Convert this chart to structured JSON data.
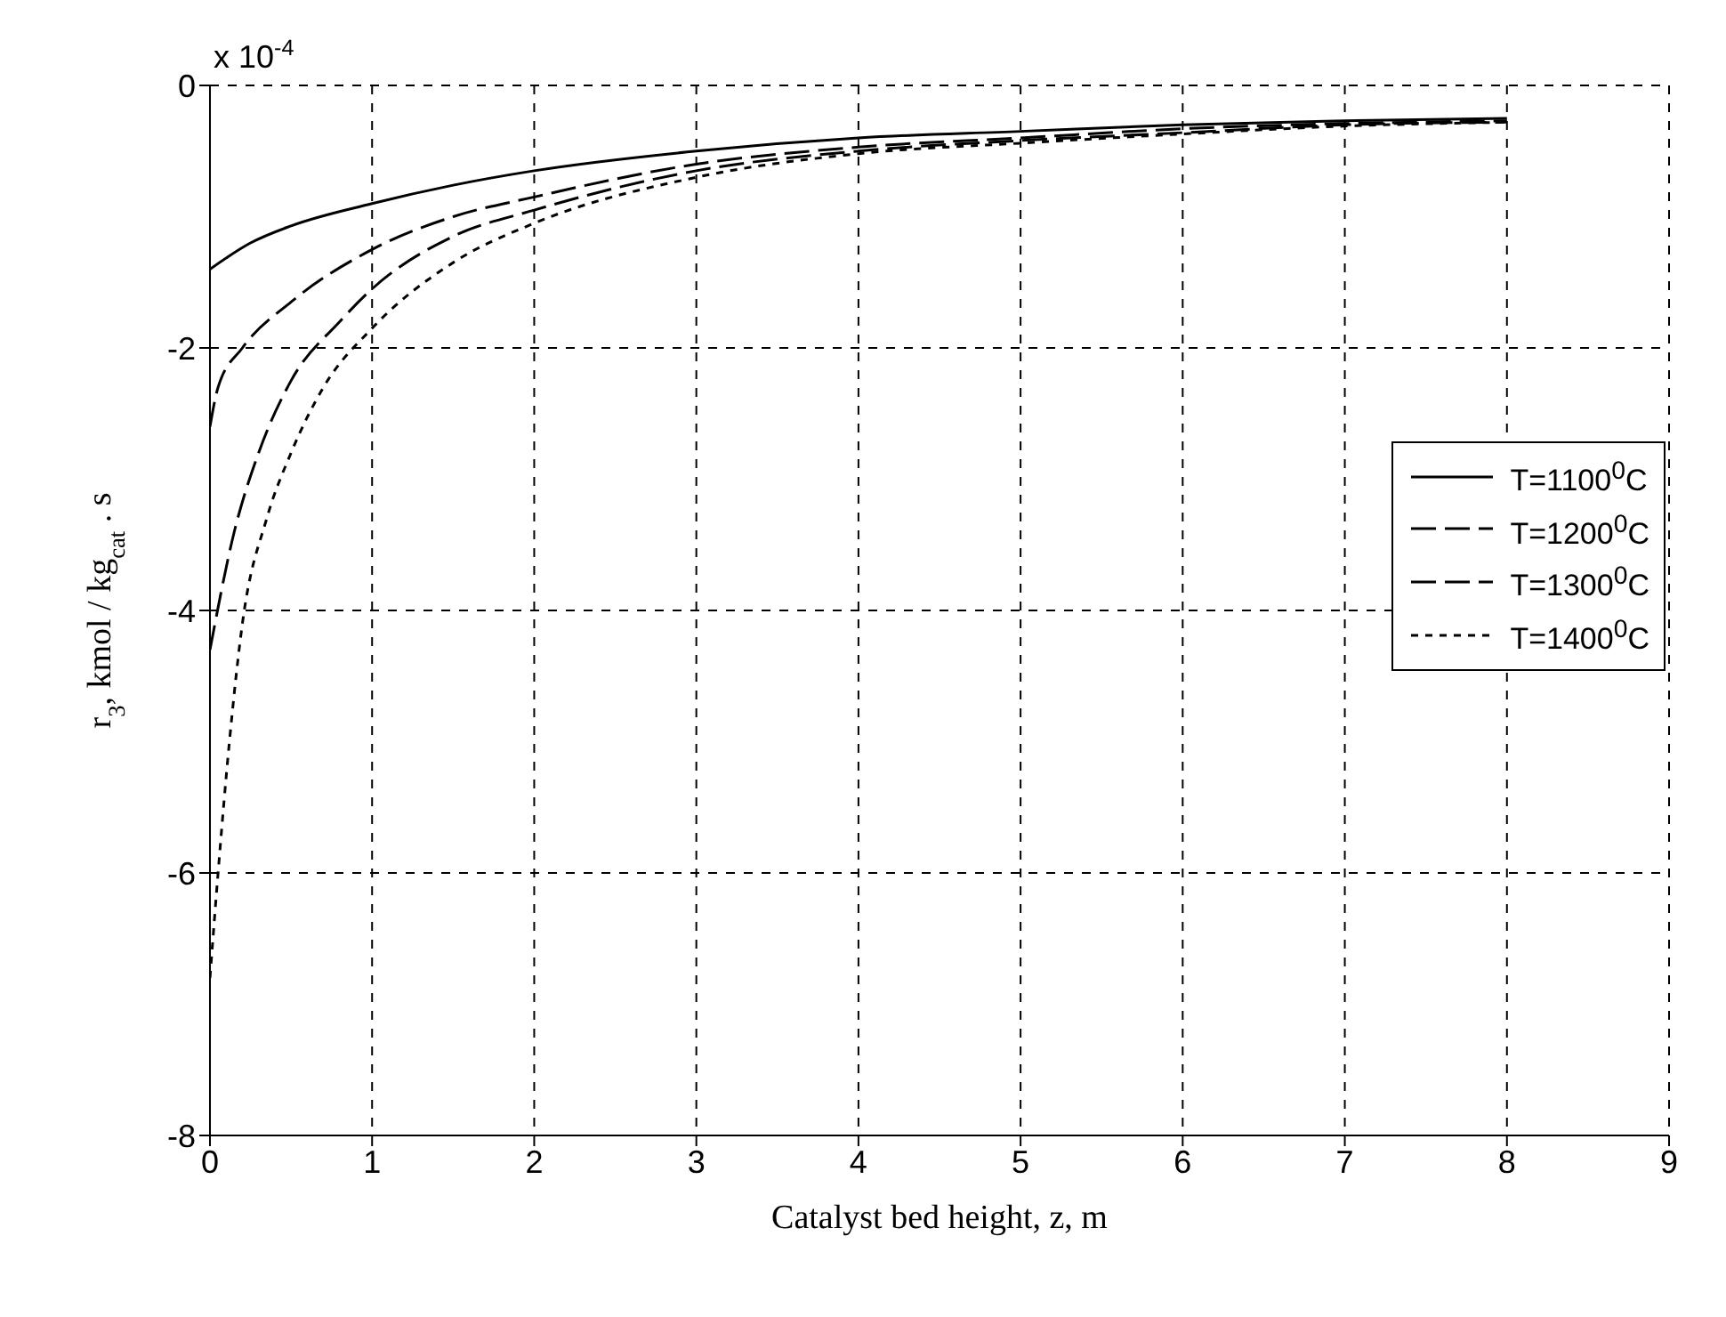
{
  "chart_data": {
    "type": "line",
    "xlabel": "Catalyst bed height, z, m",
    "ylabel": "r$_{3}$, kmol / kg$_{cat}$ . s",
    "annotations": [
      "x 10$^{-4}$"
    ],
    "xlim": [
      0,
      9
    ],
    "xticks": [
      0,
      1,
      2,
      3,
      4,
      5,
      6,
      7,
      8,
      9
    ],
    "ylim": [
      -8,
      0
    ],
    "yticks": [
      0,
      -2,
      -4,
      -6,
      -8
    ],
    "grid": true,
    "legend": "right",
    "series": [
      {
        "name": "T=1100$^{0}$C",
        "color": "#000000",
        "line_style": "solid",
        "x": [
          0,
          0.25,
          0.5,
          1,
          1.5,
          2,
          3,
          4,
          5,
          6,
          7,
          8
        ],
        "values": [
          -1.4,
          -1.2,
          -1.07,
          -0.9,
          -0.76,
          -0.65,
          -0.5,
          -0.4,
          -0.35,
          -0.3,
          -0.27,
          -0.25
        ]
      },
      {
        "name": "T=1200$^{0}$C",
        "color": "#000000",
        "line_style": "dashed",
        "x": [
          0,
          0.05,
          0.2,
          0.5,
          1,
          1.5,
          2,
          3,
          4,
          5,
          6,
          7,
          8
        ],
        "values": [
          -2.6,
          -2.3,
          -2.0,
          -1.65,
          -1.25,
          -1.0,
          -0.85,
          -0.6,
          -0.47,
          -0.4,
          -0.33,
          -0.29,
          -0.27
        ]
      },
      {
        "name": "T=1300$^{0}$C",
        "color": "#000000",
        "line_style": "dashed",
        "x": [
          0,
          0.15,
          0.3,
          0.5,
          0.8,
          1,
          1.5,
          2,
          3,
          4,
          5,
          6,
          7,
          8
        ],
        "values": [
          -4.3,
          -3.4,
          -2.8,
          -2.25,
          -1.8,
          -1.55,
          -1.15,
          -0.95,
          -0.65,
          -0.5,
          -0.42,
          -0.36,
          -0.3,
          -0.28
        ]
      },
      {
        "name": "T=1400$^{0}$C",
        "color": "#000000",
        "line_style": "dotted",
        "x": [
          0,
          0.05,
          0.12,
          0.2,
          0.35,
          0.5,
          0.7,
          1,
          1.5,
          2,
          3,
          4,
          5,
          6,
          7,
          8
        ],
        "values": [
          -6.8,
          -6.0,
          -5.0,
          -4.1,
          -3.3,
          -2.8,
          -2.3,
          -1.85,
          -1.35,
          -1.05,
          -0.7,
          -0.52,
          -0.44,
          -0.37,
          -0.31,
          -0.28
        ]
      }
    ]
  }
}
